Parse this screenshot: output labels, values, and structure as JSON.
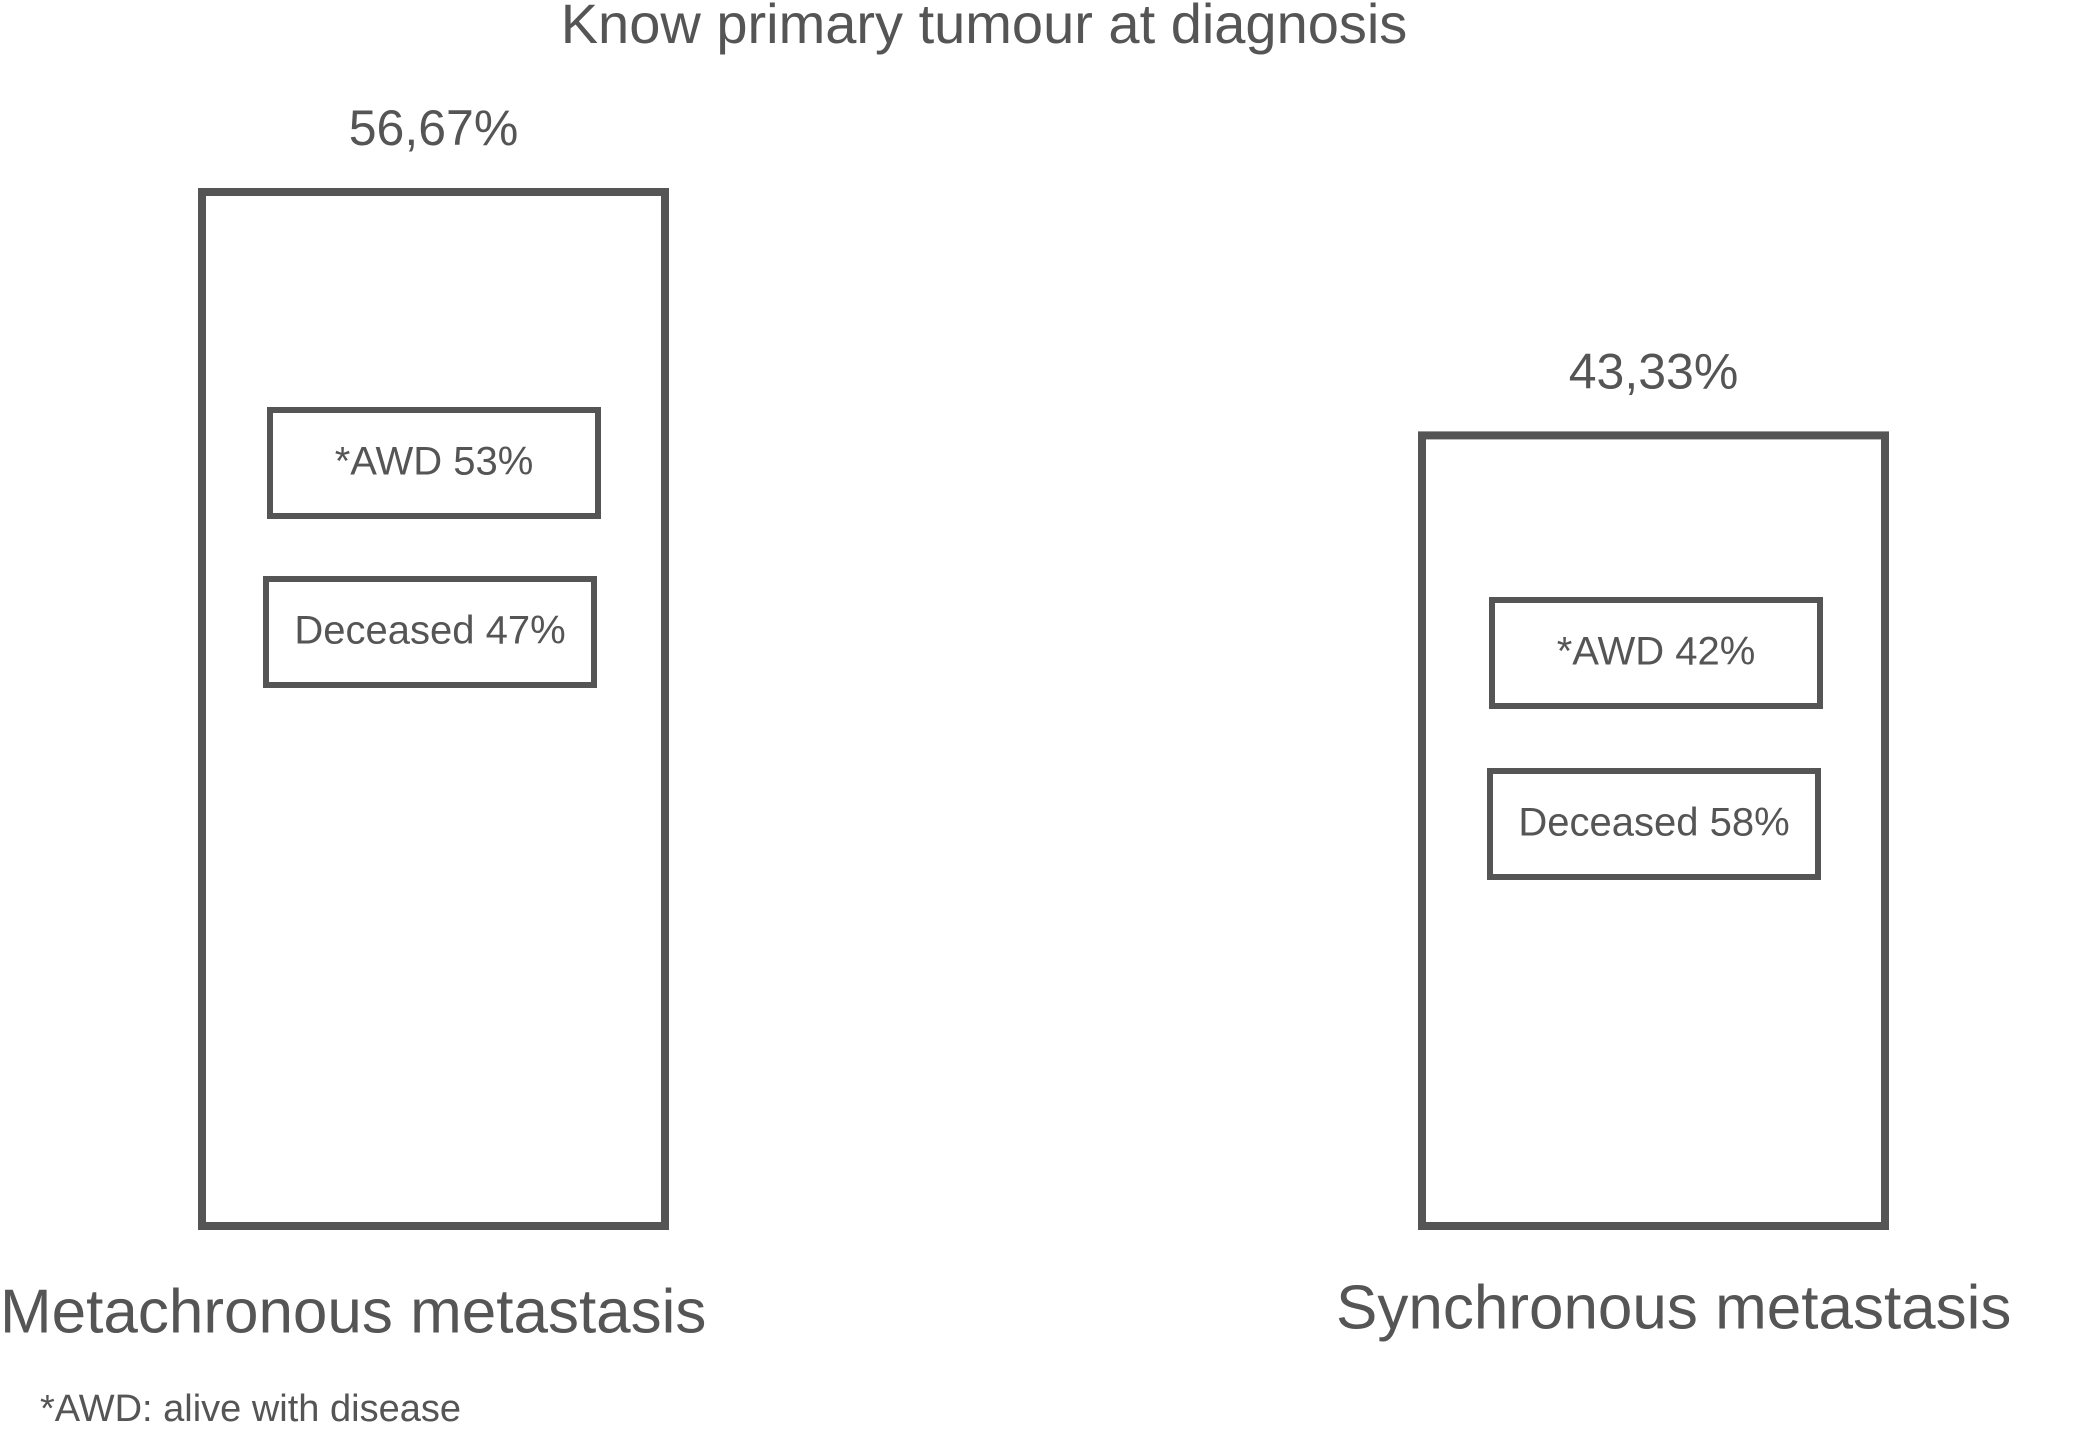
{
  "chart_data": {
    "type": "bar",
    "title": "Know primary tumour at diagnosis",
    "categories": [
      "Metachronous metastasis",
      "Synchronous metastasis"
    ],
    "values": [
      56.67,
      43.33
    ],
    "value_labels": [
      "56,67%",
      "43,33%"
    ],
    "color": "#555555",
    "breakdown": [
      [
        "*AWD 53%",
        "Deceased 47%"
      ],
      [
        "*AWD 42%",
        "Deceased 58%"
      ]
    ],
    "note": "*AWD: alive with disease"
  }
}
